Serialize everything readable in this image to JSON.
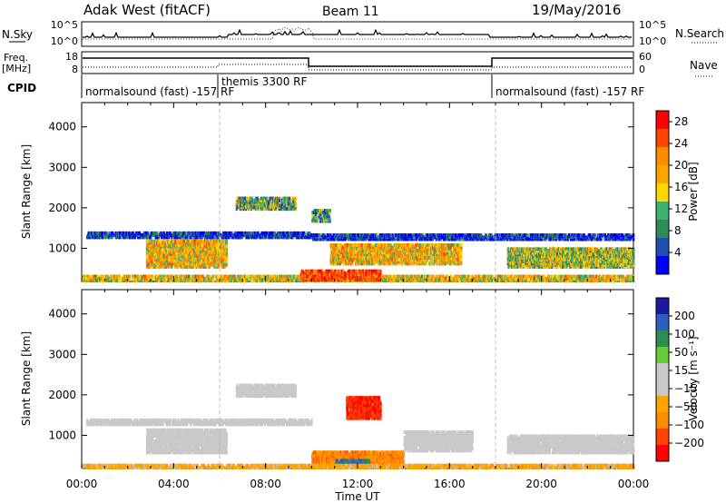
{
  "header": {
    "station": "Adak West (fitACF)",
    "beam": "Beam 11",
    "date": "19/May/2016"
  },
  "labels": {
    "nsky": "N.Sky",
    "nsearch": "N.Search",
    "freq": "Freq.",
    "freq_unit": "[MHz]",
    "nave": "Nave",
    "cpid": "CPID",
    "time_axis": "Time UT",
    "yaxis": "Slant Range [km]",
    "power_cb": "Power [dB]",
    "velocity_cb": "Velocity [m s⁻¹]"
  },
  "noise_axis": {
    "left_ticks": [
      "10^5",
      "10^0"
    ],
    "right_ticks": [
      "10^5",
      "10^0"
    ]
  },
  "freq_axis": {
    "left_ticks": [
      "18",
      "8"
    ],
    "right_ticks": [
      "60",
      "0"
    ]
  },
  "cpid_segments": [
    {
      "text": "normalsound (fast) -157 RF",
      "start": 0,
      "end": 6
    },
    {
      "text": "themis 3300 RF",
      "start": 6,
      "end": 18
    },
    {
      "text": "normalsound (fast) -157 RF",
      "start": 18,
      "end": 24
    }
  ],
  "colors": {
    "power": [
      "#0000ff",
      "#1f4eb0",
      "#2e8b57",
      "#3cb371",
      "#ffd700",
      "#ffa500",
      "#ff8c00",
      "#ff4500",
      "#ff0000"
    ],
    "velocity": [
      "#1a1aa0",
      "#2e5fc0",
      "#2e8b57",
      "#66cc33",
      "#c8c8c8",
      "#c8c8c8",
      "#ffa500",
      "#ff8c00",
      "#ff4500",
      "#ff0000"
    ]
  },
  "chart_data": [
    {
      "type": "heatmap",
      "title": "Power",
      "ylabel": "Slant Range [km]",
      "xlabel": "Time UT",
      "x_ticks": [
        "00:00",
        "04:00",
        "08:00",
        "12:00",
        "16:00",
        "20:00",
        "00:00"
      ],
      "y_ticks": [
        1000,
        2000,
        3000,
        4000
      ],
      "xlim_hours": [
        0,
        24
      ],
      "ylim_km": [
        180,
        4600
      ],
      "colorbar": {
        "label": "Power [dB]",
        "ticks": [
          4,
          8,
          12,
          16,
          20,
          24,
          28
        ],
        "range": [
          0,
          30
        ]
      },
      "regions": [
        {
          "t": [
            0,
            24
          ],
          "r": [
            180,
            330
          ],
          "level": 0.55
        },
        {
          "t": [
            2.8,
            6.3
          ],
          "r": [
            520,
            1200
          ],
          "level": 0.6
        },
        {
          "t": [
            0.2,
            10
          ],
          "r": [
            1250,
            1400
          ],
          "level": 0.1
        },
        {
          "t": [
            6.7,
            9.3
          ],
          "r": [
            1950,
            2250
          ],
          "level": 0.35
        },
        {
          "t": [
            10,
            10.8
          ],
          "r": [
            1650,
            1950
          ],
          "level": 0.3
        },
        {
          "t": [
            10.8,
            16.5
          ],
          "r": [
            600,
            1100
          ],
          "level": 0.6
        },
        {
          "t": [
            9.5,
            13
          ],
          "r": [
            200,
            450
          ],
          "level": 0.85
        },
        {
          "t": [
            18.5,
            24
          ],
          "r": [
            520,
            1000
          ],
          "level": 0.45
        },
        {
          "t": [
            10,
            24
          ],
          "r": [
            1200,
            1350
          ],
          "level": 0.1
        }
      ]
    },
    {
      "type": "heatmap",
      "title": "Velocity",
      "ylabel": "Slant Range [km]",
      "xlabel": "Time UT",
      "x_ticks": [
        "00:00",
        "04:00",
        "08:00",
        "12:00",
        "16:00",
        "20:00",
        "00:00"
      ],
      "y_ticks": [
        1000,
        2000,
        3000,
        4000
      ],
      "xlim_hours": [
        0,
        24
      ],
      "ylim_km": [
        180,
        4600
      ],
      "colorbar": {
        "label": "Velocity [m s⁻¹]",
        "ticks": [
          200,
          100,
          50,
          15,
          -15,
          -50,
          -100,
          -200
        ],
        "range": [
          -250,
          250
        ]
      },
      "regions": [
        {
          "t": [
            0.2,
            10
          ],
          "r": [
            1250,
            1400
          ],
          "level": 0.0
        },
        {
          "t": [
            2.8,
            6.3
          ],
          "r": [
            550,
            1150
          ],
          "level": 0.0
        },
        {
          "t": [
            6.7,
            9.3
          ],
          "r": [
            1950,
            2250
          ],
          "level": 0.0
        },
        {
          "t": [
            11.5,
            13
          ],
          "r": [
            1400,
            1950
          ],
          "level": -0.8
        },
        {
          "t": [
            10,
            14
          ],
          "r": [
            200,
            600
          ],
          "level": -0.5
        },
        {
          "t": [
            14,
            17
          ],
          "r": [
            600,
            1100
          ],
          "level": 0.0
        },
        {
          "t": [
            18.5,
            24
          ],
          "r": [
            550,
            1000
          ],
          "level": 0.0
        },
        {
          "t": [
            11,
            12.5
          ],
          "r": [
            250,
            400
          ],
          "level": 0.6
        },
        {
          "t": [
            0,
            24
          ],
          "r": [
            180,
            280
          ],
          "level": -0.3
        }
      ]
    }
  ]
}
